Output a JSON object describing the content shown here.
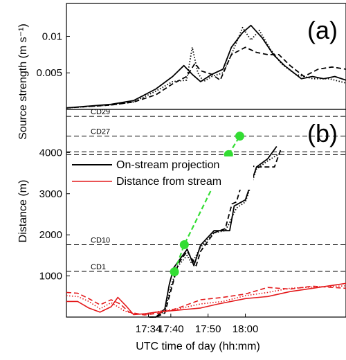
{
  "chart_data": [
    {
      "panel": "a",
      "type": "line",
      "panel_label": "(a)",
      "ylabel": "Source strength (m s⁻¹)",
      "ylim": [
        0,
        0.0145
      ],
      "yticks": [
        0.005,
        0.01
      ],
      "ytick_labels": [
        "0.005",
        "0.01"
      ],
      "xlim": [
        0,
        100
      ],
      "series": [
        {
          "style": "solid",
          "color": "#000000",
          "x": [
            0,
            16,
            24,
            32,
            38,
            42,
            45,
            48,
            52,
            56,
            59,
            63,
            66,
            70,
            74,
            78,
            84,
            88,
            92,
            96,
            100
          ],
          "y": [
            0.0002,
            0.0007,
            0.0012,
            0.0028,
            0.0045,
            0.006,
            0.0048,
            0.0038,
            0.0048,
            0.0055,
            0.0085,
            0.0105,
            0.0115,
            0.0098,
            0.0075,
            0.006,
            0.0042,
            0.0045,
            0.0042,
            0.0045,
            0.004
          ]
        },
        {
          "style": "dashed",
          "color": "#000000",
          "x": [
            0,
            16,
            24,
            32,
            38,
            43,
            46,
            48,
            52,
            55,
            59,
            64,
            68,
            72,
            76,
            80,
            85,
            90,
            95,
            100
          ],
          "y": [
            0.0002,
            0.0006,
            0.001,
            0.002,
            0.0035,
            0.0045,
            0.0063,
            0.0053,
            0.0048,
            0.004,
            0.0075,
            0.0085,
            0.0078,
            0.0075,
            0.0075,
            0.006,
            0.0045,
            0.0055,
            0.0058,
            0.0055
          ]
        },
        {
          "style": "dotted",
          "color": "#000000",
          "x": [
            0,
            16,
            24,
            32,
            38,
            43,
            45,
            47,
            49,
            52,
            56,
            59,
            63,
            66,
            69,
            73,
            77,
            82,
            88,
            94,
            100
          ],
          "y": [
            0.0002,
            0.0006,
            0.001,
            0.0025,
            0.0038,
            0.004,
            0.0085,
            0.005,
            0.0038,
            0.0045,
            0.005,
            0.0075,
            0.0112,
            0.0095,
            0.0108,
            0.0082,
            0.0062,
            0.0048,
            0.0042,
            0.0042,
            0.0036
          ]
        }
      ]
    },
    {
      "panel": "b",
      "type": "line",
      "panel_label": "(b)",
      "xlabel": "UTC time of day (hh:mm)",
      "ylabel": "Distance (m)",
      "xlim": [
        17.2,
        18.45
      ],
      "ylim": [
        0,
        5050
      ],
      "xticks": [
        17.5667,
        17.6667,
        17.8333,
        18.0
      ],
      "xtick_labels": [
        "17:34",
        "17:40",
        "17:50",
        "18:00"
      ],
      "yticks": [
        1000,
        2000,
        3000,
        4000
      ],
      "ytick_labels": [
        "1000",
        "2000",
        "3000",
        "4000"
      ],
      "reference_lines": [
        {
          "label": "CD29",
          "y": 4880
        },
        {
          "label": "CD27",
          "y": 4400
        },
        {
          "label": "",
          "y": 4020
        },
        {
          "label": "",
          "y": 3950
        },
        {
          "label": "CD10",
          "y": 1760
        },
        {
          "label": "CD1",
          "y": 1110
        }
      ],
      "legend": [
        {
          "label": "On-stream projection",
          "color": "#000000"
        },
        {
          "label": "Distance from stream",
          "color": "#e41a1c"
        }
      ],
      "markers": {
        "color": "#33dd33",
        "x": [
          17.683,
          17.727,
          17.925,
          17.975
        ],
        "y": [
          1100,
          1760,
          3950,
          4400
        ]
      },
      "series": [
        {
          "group": "On-stream projection",
          "style": "solid",
          "color": "#000000",
          "x": [
            17.57,
            17.6,
            17.64,
            17.66,
            17.68,
            17.74,
            17.77,
            17.8,
            17.86,
            17.93,
            17.95,
            18.0,
            18.05,
            18.1,
            18.14
          ],
          "y": [
            0,
            0,
            200,
            800,
            1200,
            1650,
            1250,
            1750,
            2100,
            2100,
            2700,
            2850,
            3650,
            3850,
            4150
          ]
        },
        {
          "group": "On-stream projection",
          "style": "dashed",
          "color": "#000000",
          "x": [
            17.57,
            17.6,
            17.64,
            17.67,
            17.7,
            17.74,
            17.78,
            17.8,
            17.86,
            17.91,
            17.94,
            17.96,
            18.01,
            18.05,
            18.13,
            18.16
          ],
          "y": [
            0,
            0,
            100,
            700,
            1300,
            1600,
            1250,
            1600,
            2050,
            2150,
            2750,
            2800,
            3700,
            3650,
            3650,
            4100
          ]
        },
        {
          "group": "On-stream projection",
          "style": "dotted",
          "color": "#000000",
          "x": [
            17.57,
            17.6,
            17.64,
            17.67,
            17.7,
            17.74,
            17.76,
            17.8,
            17.86,
            17.91,
            17.93,
            17.96,
            18.0,
            18.05,
            18.1,
            18.16
          ],
          "y": [
            0,
            0,
            150,
            800,
            1250,
            1500,
            1300,
            1700,
            2050,
            2100,
            2300,
            2650,
            2800,
            3600,
            3800,
            4000
          ]
        },
        {
          "group": "Distance from stream",
          "style": "solid",
          "color": "#e41a1c",
          "x": [
            17.2,
            17.25,
            17.3,
            17.35,
            17.4,
            17.43,
            17.47,
            17.5,
            17.55,
            17.6,
            17.7,
            17.8,
            17.88,
            18.0,
            18.1,
            18.2,
            18.3,
            18.45
          ],
          "y": [
            380,
            380,
            220,
            120,
            250,
            480,
            250,
            60,
            80,
            120,
            170,
            220,
            320,
            450,
            500,
            620,
            700,
            820
          ]
        },
        {
          "group": "Distance from stream",
          "style": "dashed",
          "color": "#e41a1c",
          "x": [
            17.2,
            17.25,
            17.3,
            17.35,
            17.4,
            17.44,
            17.48,
            17.5,
            17.55,
            17.62,
            17.7,
            17.8,
            17.9,
            18.0,
            18.1,
            18.2,
            18.3,
            18.45
          ],
          "y": [
            600,
            580,
            450,
            300,
            420,
            320,
            120,
            100,
            50,
            100,
            220,
            420,
            480,
            560,
            720,
            680,
            750,
            700
          ]
        },
        {
          "group": "Distance from stream",
          "style": "dotted",
          "color": "#e41a1c",
          "x": [
            17.2,
            17.25,
            17.3,
            17.35,
            17.4,
            17.46,
            17.5,
            17.56,
            17.62,
            17.7,
            17.8,
            17.9,
            18.0,
            18.1,
            18.2,
            18.3,
            18.45
          ],
          "y": [
            520,
            500,
            380,
            200,
            350,
            150,
            80,
            60,
            150,
            200,
            320,
            380,
            520,
            600,
            700,
            730,
            760
          ]
        }
      ]
    }
  ]
}
